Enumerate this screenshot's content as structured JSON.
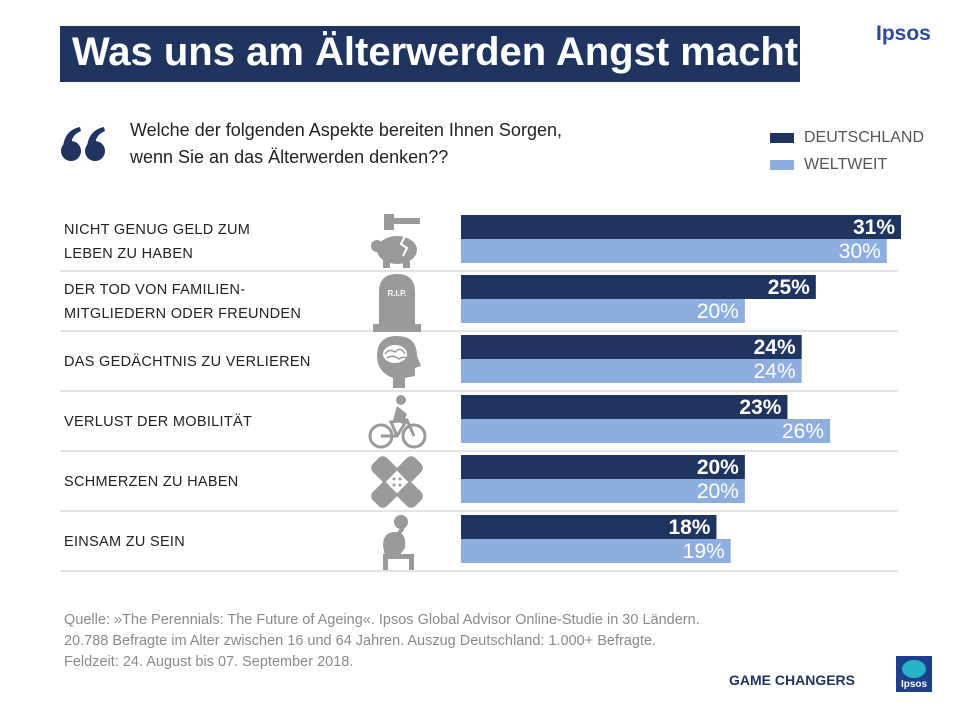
{
  "header": {
    "title": "Was uns am Älterwerden Angst macht",
    "brand": "Ipsos"
  },
  "question": {
    "line1": "Welche der folgenden Aspekte bereiten Ihnen Sorgen,",
    "line2": "wenn Sie an das Älterwerden denken??"
  },
  "legend": [
    {
      "label": "DEUTSCHLAND",
      "color": "#1f3560"
    },
    {
      "label": "WELTWEIT",
      "color": "#8eaee0"
    }
  ],
  "chart_data": {
    "type": "bar",
    "orientation": "horizontal",
    "categories": [
      [
        "NICHT GENUG GELD ZUM",
        "LEBEN ZU HABEN"
      ],
      [
        "DER TOD VON FAMILIEN-",
        "MITGLIEDERN  ODER FREUNDEN"
      ],
      [
        "DAS GEDÄCHTNIS ZU VERLIEREN"
      ],
      [
        "VERLUST DER MOBILITÄT"
      ],
      [
        "SCHMERZEN ZU HABEN"
      ],
      [
        "EINSAM ZU SEIN"
      ]
    ],
    "icons": [
      "piggy-bank-hammer-icon",
      "gravestone-rip-icon",
      "head-brain-icon",
      "cyclist-icon",
      "bandage-icon",
      "sad-person-icon"
    ],
    "icon_text": {
      "rip": "R.I.P."
    },
    "series": [
      {
        "name": "DEUTSCHLAND",
        "values": [
          31,
          25,
          24,
          23,
          20,
          18
        ],
        "labels": [
          "31%",
          "25%",
          "24%",
          "23%",
          "20%",
          "18%"
        ]
      },
      {
        "name": "WELTWEIT",
        "values": [
          30,
          20,
          24,
          26,
          20,
          19
        ],
        "labels": [
          "30%",
          "20%",
          "24%",
          "26%",
          "20%",
          "19%"
        ]
      }
    ],
    "xlim": [
      0,
      31
    ],
    "unit": "%"
  },
  "source": {
    "line1": "Quelle: »The Perennials: The Future of Ageing«. Ipsos Global Advisor Online-Studie in 30 Ländern.",
    "line2": "20.788 Befragte im Alter zwischen 16 und 64 Jahren. Auszug Deutschland: 1.000+ Befragte.",
    "line3": "Feldzeit: 24. August bis 07. September 2018."
  },
  "footer": {
    "tagline": "GAME CHANGERS",
    "logo_text": "Ipsos"
  }
}
